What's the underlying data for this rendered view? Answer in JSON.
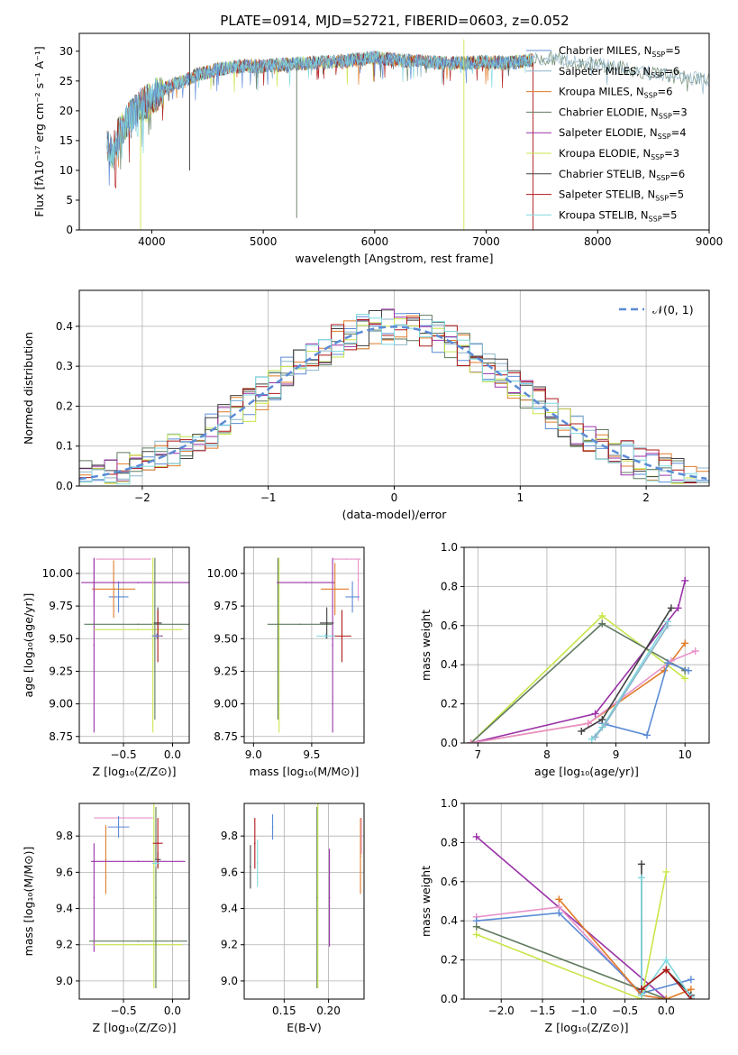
{
  "figure_title": "PLATE=0914, MJD=52721, FIBERID=0603, z=0.052",
  "colors": {
    "chabrier_miles": "#5b8bd6",
    "salpeter_miles": "#8cb4c8",
    "kroupa_miles": "#e07b28",
    "chabrier_elodie": "#5f7a5f",
    "salpeter_elodie": "#9a32a8",
    "kroupa_elodie": "#c8e64a",
    "chabrier_stelib": "#404040",
    "salpeter_stelib": "#b01818",
    "kroupa_stelib": "#7fd8e0",
    "pink": "#e891c9",
    "blue2": "#6a8fd8"
  },
  "chart_data": [
    {
      "id": "spectrum",
      "type": "line",
      "xlabel": "wavelength [Angstrom, rest frame]",
      "ylabel": "Flux [fλ10⁻¹⁷ erg cm⁻² s⁻¹ A⁻¹]",
      "xlim": [
        3350,
        9000
      ],
      "ylim": [
        0,
        33
      ],
      "xticks": [
        4000,
        5000,
        6000,
        7000,
        8000,
        9000
      ],
      "yticks": [
        0,
        5,
        10,
        15,
        20,
        25,
        30
      ],
      "grid": false,
      "legend_position": "right",
      "continuum": {
        "x": [
          3600,
          3650,
          3700,
          3800,
          3900,
          4000,
          4100,
          4200,
          4300,
          4400,
          4600,
          4800,
          5000,
          5200,
          5400,
          5600,
          5800,
          6000,
          6200,
          6400,
          6600,
          6800,
          7000,
          7200,
          7400,
          7600,
          7800,
          8000,
          8200,
          8400,
          8600,
          8800,
          9000
        ],
        "y": [
          14,
          13,
          16,
          19,
          21,
          22,
          23.5,
          24.5,
          25,
          26,
          27,
          27.5,
          27.5,
          27.8,
          28,
          28.2,
          28.5,
          29,
          28.5,
          28.3,
          28,
          28,
          28.2,
          28,
          28.5,
          28.8,
          28.2,
          27.8,
          27.3,
          26.5,
          26,
          25.5,
          25.3
        ]
      },
      "spike_lines": [
        {
          "x": 3900,
          "color_key": "kroupa_elodie",
          "from": 0,
          "to": 20
        },
        {
          "x": 4340,
          "color_key": "chabrier_stelib",
          "from": 10,
          "to": 33
        },
        {
          "x": 5300,
          "color_key": "chabrier_elodie",
          "from": 2,
          "to": 28
        },
        {
          "x": 6800,
          "color_key": "kroupa_elodie",
          "from": 0,
          "to": 32
        },
        {
          "x": 7420,
          "color_key": "salpeter_stelib",
          "from": 0,
          "to": 28
        }
      ],
      "series": [
        {
          "name": "Chabrier MILES",
          "n_label": "5",
          "color_key": "chabrier_miles"
        },
        {
          "name": "Salpeter MILES",
          "n_label": "6",
          "color_key": "salpeter_miles"
        },
        {
          "name": "Kroupa MILES",
          "n_label": "6",
          "color_key": "kroupa_miles"
        },
        {
          "name": "Chabrier ELODIE",
          "n_label": "3",
          "color_key": "chabrier_elodie"
        },
        {
          "name": "Salpeter ELODIE",
          "n_label": "4",
          "color_key": "salpeter_elodie"
        },
        {
          "name": "Kroupa ELODIE",
          "n_label": "3",
          "color_key": "kroupa_elodie"
        },
        {
          "name": "Chabrier STELIB",
          "n_label": "6",
          "color_key": "chabrier_stelib"
        },
        {
          "name": "Salpeter STELIB",
          "n_label": "5",
          "color_key": "salpeter_stelib"
        },
        {
          "name": "Kroupa STELIB",
          "n_label": "5",
          "color_key": "kroupa_stelib"
        }
      ]
    },
    {
      "id": "residual_hist",
      "type": "bar",
      "xlabel": "(data-model)/error",
      "ylabel": "Normed distribution",
      "xlim": [
        -2.5,
        2.5
      ],
      "ylim": [
        0,
        0.49
      ],
      "xticks": [
        -2,
        -1,
        0,
        1,
        2
      ],
      "xtick_labels": [
        "−2",
        "−1",
        "0",
        "1",
        "2"
      ],
      "yticks": [
        0,
        0.1,
        0.2,
        0.3,
        0.4
      ],
      "ytick_labels": [
        "0.0",
        "0.1",
        "0.2",
        "0.3",
        "0.4"
      ],
      "grid": true,
      "legend_position": "top-right",
      "reference_curve": {
        "label": "𝒩(0, 1)",
        "mean": 0,
        "sigma": 1
      },
      "bin_width": 0.1,
      "hist_series": [
        "chabrier_miles",
        "salpeter_miles",
        "kroupa_miles",
        "chabrier_elodie",
        "salpeter_elodie",
        "kroupa_elodie",
        "chabrier_stelib",
        "salpeter_stelib",
        "kroupa_stelib"
      ]
    },
    {
      "id": "age_vs_Z",
      "type": "scatter",
      "xlabel": "Z [log₁₀(Z/Z⊙)]",
      "ylabel": "age  [log₁₀(age/yr)]",
      "xlim": [
        -0.95,
        0.17
      ],
      "ylim": [
        8.7,
        10.2
      ],
      "xticks": [
        -0.5,
        0.0
      ],
      "xtick_labels": [
        "−0.5",
        "0.0"
      ],
      "yticks": [
        8.75,
        9.0,
        9.25,
        9.5,
        9.75,
        10.0
      ],
      "ytick_labels": [
        "8.75",
        "9.00",
        "9.25",
        "9.50",
        "9.75",
        "10.00"
      ],
      "grid": true,
      "points": [
        {
          "x": -0.55,
          "y": 9.82,
          "xerr": 0.1,
          "yerr": 0.12,
          "color_key": "chabrier_miles"
        },
        {
          "x": -0.8,
          "y": 9.93,
          "xerr": 0.0,
          "yerr": 0.18,
          "color_key": "pink"
        },
        {
          "x": -0.5,
          "y": 10.11,
          "xerr": 0.28,
          "yerr": 0.0,
          "color_key": "pink"
        },
        {
          "x": -0.6,
          "y": 9.88,
          "xerr": 0.22,
          "yerr": 0.22,
          "color_key": "kroupa_miles"
        },
        {
          "x": -0.35,
          "y": 9.93,
          "xerr": 0.58,
          "yerr": 0.0,
          "color_key": "salpeter_elodie"
        },
        {
          "x": -0.8,
          "y": 9.45,
          "xerr": 0.0,
          "yerr": 0.67,
          "color_key": "salpeter_elodie"
        },
        {
          "x": -0.35,
          "y": 9.61,
          "xerr": 0.55,
          "yerr": 0.0,
          "color_key": "chabrier_elodie"
        },
        {
          "x": -0.35,
          "y": 9.57,
          "xerr": 0.45,
          "yerr": 0.0,
          "color_key": "kroupa_elodie"
        },
        {
          "x": -0.2,
          "y": 9.45,
          "xerr": 0.0,
          "yerr": 0.67,
          "color_key": "kroupa_elodie"
        },
        {
          "x": -0.18,
          "y": 9.5,
          "xerr": 0.0,
          "yerr": 0.62,
          "color_key": "chabrier_elodie"
        },
        {
          "x": -0.15,
          "y": 9.62,
          "xerr": 0.04,
          "yerr": 0.12,
          "color_key": "chabrier_stelib"
        },
        {
          "x": -0.15,
          "y": 9.52,
          "xerr": 0.05,
          "yerr": 0.2,
          "color_key": "salpeter_stelib"
        },
        {
          "x": -0.16,
          "y": 9.52,
          "xerr": 0.05,
          "yerr": 0.02,
          "color_key": "blue2"
        }
      ]
    },
    {
      "id": "age_vs_mass",
      "type": "scatter",
      "xlabel": "mass [log₁₀(M/M⊙)]",
      "xlim": [
        8.92,
        9.95
      ],
      "ylim": [
        8.7,
        10.2
      ],
      "xticks": [
        9.0,
        9.5
      ],
      "xtick_labels": [
        "9.0",
        "9.5"
      ],
      "yticks": [
        8.75,
        9.0,
        9.25,
        9.5,
        9.75,
        10.0
      ],
      "ytick_labels": [
        "8.75",
        "9.00",
        "9.25",
        "9.50",
        "9.75",
        "10.00"
      ],
      "grid": true,
      "points": [
        {
          "x": 9.22,
          "y": 9.45,
          "xerr": 0.0,
          "yerr": 0.67,
          "color_key": "kroupa_elodie"
        },
        {
          "x": 9.21,
          "y": 9.5,
          "xerr": 0.0,
          "yerr": 0.62,
          "color_key": "chabrier_elodie"
        },
        {
          "x": 9.45,
          "y": 9.93,
          "xerr": 0.25,
          "yerr": 0.0,
          "color_key": "salpeter_elodie"
        },
        {
          "x": 9.68,
          "y": 9.45,
          "xerr": 0.0,
          "yerr": 0.67,
          "color_key": "salpeter_elodie"
        },
        {
          "x": 9.4,
          "y": 9.61,
          "xerr": 0.28,
          "yerr": 0.0,
          "color_key": "chabrier_elodie"
        },
        {
          "x": 9.7,
          "y": 9.88,
          "xerr": 0.12,
          "yerr": 0.2,
          "color_key": "kroupa_miles"
        },
        {
          "x": 9.8,
          "y": 10.11,
          "xerr": 0.12,
          "yerr": 0.0,
          "color_key": "pink"
        },
        {
          "x": 9.9,
          "y": 9.95,
          "xerr": 0.0,
          "yerr": 0.16,
          "color_key": "pink"
        },
        {
          "x": 9.85,
          "y": 9.82,
          "xerr": 0.06,
          "yerr": 0.12,
          "color_key": "chabrier_miles"
        },
        {
          "x": 9.63,
          "y": 9.62,
          "xerr": 0.06,
          "yerr": 0.12,
          "color_key": "chabrier_stelib"
        },
        {
          "x": 9.76,
          "y": 9.52,
          "xerr": 0.08,
          "yerr": 0.2,
          "color_key": "salpeter_stelib"
        },
        {
          "x": 9.62,
          "y": 9.52,
          "xerr": 0.08,
          "yerr": 0.02,
          "color_key": "kroupa_stelib"
        }
      ]
    },
    {
      "id": "massweight_vs_age",
      "type": "line",
      "xlabel": "age  [log₁₀(age/yr)]",
      "ylabel": "mass weight",
      "xlim": [
        6.8,
        10.35
      ],
      "ylim": [
        0,
        1.0
      ],
      "xticks": [
        7,
        8,
        9,
        10
      ],
      "yticks": [
        0,
        0.2,
        0.4,
        0.6,
        0.8,
        1.0
      ],
      "ytick_labels": [
        "0.0",
        "0.2",
        "0.4",
        "0.6",
        "0.8",
        "1.0"
      ],
      "grid": true,
      "series": [
        {
          "color_key": "kroupa_elodie",
          "x": [
            6.9,
            8.8,
            10.0
          ],
          "y": [
            0.0,
            0.65,
            0.33
          ]
        },
        {
          "color_key": "chabrier_elodie",
          "x": [
            6.9,
            8.8,
            10.0
          ],
          "y": [
            0.0,
            0.61,
            0.37
          ]
        },
        {
          "color_key": "salpeter_elodie",
          "x": [
            6.9,
            8.7,
            9.9,
            10.0
          ],
          "y": [
            0.0,
            0.15,
            0.69,
            0.83
          ]
        },
        {
          "color_key": "kroupa_miles",
          "x": [
            6.9,
            8.6,
            9.7,
            10.0
          ],
          "y": [
            0.0,
            0.1,
            0.37,
            0.51
          ]
        },
        {
          "color_key": "pink",
          "x": [
            6.9,
            8.6,
            9.8,
            10.15
          ],
          "y": [
            0.0,
            0.1,
            0.42,
            0.47
          ]
        },
        {
          "color_key": "chabrier_miles",
          "x": [
            8.8,
            9.45,
            9.75,
            10.05
          ],
          "y": [
            0.1,
            0.04,
            0.41,
            0.37
          ]
        },
        {
          "color_key": "chabrier_stelib",
          "x": [
            8.5,
            8.8,
            9.8
          ],
          "y": [
            0.06,
            0.12,
            0.69
          ]
        },
        {
          "color_key": "kroupa_stelib",
          "x": [
            8.65,
            8.8,
            9.75
          ],
          "y": [
            0.02,
            0.08,
            0.62
          ]
        },
        {
          "color_key": "salpeter_miles",
          "x": [
            8.7,
            8.85,
            9.75
          ],
          "y": [
            0.03,
            0.1,
            0.6
          ]
        }
      ]
    },
    {
      "id": "mass_vs_Z",
      "type": "scatter",
      "xlabel": "Z [log₁₀(Z/Z⊙)]",
      "ylabel": "mass  [log₁₀(M/M⊙)]",
      "xlim": [
        -0.95,
        0.17
      ],
      "ylim": [
        8.9,
        9.98
      ],
      "xticks": [
        -0.5,
        0.0
      ],
      "xtick_labels": [
        "−0.5",
        "0.0"
      ],
      "yticks": [
        9.0,
        9.2,
        9.4,
        9.6,
        9.8
      ],
      "ytick_labels": [
        "9.0",
        "9.2",
        "9.4",
        "9.6",
        "9.8"
      ],
      "grid": true,
      "points": [
        {
          "x": -0.5,
          "y": 9.9,
          "xerr": 0.3,
          "yerr": 0.0,
          "color_key": "pink"
        },
        {
          "x": -0.55,
          "y": 9.85,
          "xerr": 0.11,
          "yerr": 0.06,
          "color_key": "chabrier_miles"
        },
        {
          "x": -0.68,
          "y": 9.67,
          "xerr": 0.0,
          "yerr": 0.19,
          "color_key": "kroupa_miles"
        },
        {
          "x": -0.35,
          "y": 9.66,
          "xerr": 0.48,
          "yerr": 0.0,
          "color_key": "salpeter_elodie"
        },
        {
          "x": -0.8,
          "y": 9.46,
          "xerr": 0.0,
          "yerr": 0.3,
          "color_key": "salpeter_elodie"
        },
        {
          "x": -0.35,
          "y": 9.22,
          "xerr": 0.5,
          "yerr": 0.0,
          "color_key": "chabrier_elodie"
        },
        {
          "x": -0.35,
          "y": 9.2,
          "xerr": 0.45,
          "yerr": 0.0,
          "color_key": "kroupa_elodie"
        },
        {
          "x": -0.19,
          "y": 9.47,
          "xerr": 0.0,
          "yerr": 0.51,
          "color_key": "kroupa_elodie"
        },
        {
          "x": -0.17,
          "y": 9.46,
          "xerr": 0.0,
          "yerr": 0.5,
          "color_key": "chabrier_elodie"
        },
        {
          "x": -0.15,
          "y": 9.67,
          "xerr": 0.03,
          "yerr": 0.04,
          "color_key": "chabrier_stelib"
        },
        {
          "x": -0.15,
          "y": 9.76,
          "xerr": 0.05,
          "yerr": 0.14,
          "color_key": "salpeter_stelib"
        },
        {
          "x": -0.17,
          "y": 9.65,
          "xerr": 0.04,
          "yerr": 0.02,
          "color_key": "kroupa_stelib"
        }
      ]
    },
    {
      "id": "mass_vs_EBV",
      "type": "scatter",
      "xlabel": "E(B-V)",
      "xlim": [
        0.105,
        0.24
      ],
      "ylim": [
        8.9,
        9.98
      ],
      "xticks": [
        0.15,
        0.2
      ],
      "xtick_labels": [
        "0.15",
        "0.20"
      ],
      "yticks": [
        9.0,
        9.2,
        9.4,
        9.6,
        9.8
      ],
      "ytick_labels": [
        "9.0",
        "9.2",
        "9.4",
        "9.6",
        "9.8"
      ],
      "grid": true,
      "points": [
        {
          "x": 0.112,
          "y": 9.63,
          "xerr": 0.0,
          "yerr": 0.12,
          "color_key": "chabrier_stelib"
        },
        {
          "x": 0.117,
          "y": 9.76,
          "xerr": 0.0,
          "yerr": 0.14,
          "color_key": "salpeter_stelib"
        },
        {
          "x": 0.12,
          "y": 9.65,
          "xerr": 0.0,
          "yerr": 0.13,
          "color_key": "kroupa_stelib"
        },
        {
          "x": 0.137,
          "y": 9.85,
          "xerr": 0.0,
          "yerr": 0.07,
          "color_key": "chabrier_miles"
        },
        {
          "x": 0.187,
          "y": 9.46,
          "xerr": 0.0,
          "yerr": 0.5,
          "color_key": "chabrier_elodie"
        },
        {
          "x": 0.188,
          "y": 9.47,
          "xerr": 0.0,
          "yerr": 0.51,
          "color_key": "kroupa_elodie"
        },
        {
          "x": 0.201,
          "y": 9.46,
          "xerr": 0.0,
          "yerr": 0.27,
          "color_key": "salpeter_elodie"
        },
        {
          "x": 0.236,
          "y": 9.69,
          "xerr": 0.0,
          "yerr": 0.21,
          "color_key": "kroupa_miles"
        },
        {
          "x": 0.237,
          "y": 9.8,
          "xerr": 0.0,
          "yerr": 0.1,
          "color_key": "pink"
        }
      ]
    },
    {
      "id": "massweight_vs_Z",
      "type": "line",
      "xlabel": "Z [log₁₀(Z/Z⊙)]",
      "ylabel": "mass weight",
      "xlim": [
        -2.45,
        0.52
      ],
      "ylim": [
        0,
        1.0
      ],
      "xticks": [
        -2.0,
        -1.5,
        -1.0,
        -0.5,
        0.0
      ],
      "xtick_labels": [
        "−2.0",
        "−1.5",
        "−1.0",
        "−0.5",
        "0.0"
      ],
      "yticks": [
        0,
        0.2,
        0.4,
        0.6,
        0.8,
        1.0
      ],
      "ytick_labels": [
        "0.0",
        "0.2",
        "0.4",
        "0.6",
        "0.8",
        "1.0"
      ],
      "grid": true,
      "series": [
        {
          "color_key": "salpeter_elodie",
          "x": [
            -2.3,
            0.0
          ],
          "y": [
            0.83,
            0.0
          ]
        },
        {
          "color_key": "pink",
          "x": [
            -2.3,
            -1.3,
            -0.3
          ],
          "y": [
            0.42,
            0.47,
            0.02
          ]
        },
        {
          "color_key": "chabrier_miles",
          "x": [
            -2.3,
            -1.3,
            -0.3,
            0.3
          ],
          "y": [
            0.4,
            0.44,
            0.03,
            0.1
          ]
        },
        {
          "color_key": "chabrier_elodie",
          "x": [
            -2.3,
            0.0
          ],
          "y": [
            0.37,
            0.0
          ]
        },
        {
          "color_key": "kroupa_elodie",
          "x": [
            -2.3,
            -0.3,
            0.0
          ],
          "y": [
            0.33,
            0.0,
            0.65
          ]
        },
        {
          "color_key": "kroupa_miles",
          "x": [
            -1.3,
            -0.3,
            0.0,
            0.3
          ],
          "y": [
            0.51,
            0.02,
            0.0,
            0.05
          ]
        },
        {
          "color_key": "chabrier_stelib",
          "x": [
            -0.3,
            -0.3,
            0.0,
            0.3
          ],
          "y": [
            0.69,
            0.05,
            0.15,
            0.02
          ]
        },
        {
          "color_key": "kroupa_stelib",
          "x": [
            -0.3,
            -0.3,
            0.0,
            0.3
          ],
          "y": [
            0.62,
            0.02,
            0.2,
            0.01
          ]
        },
        {
          "color_key": "salpeter_stelib",
          "x": [
            -0.3,
            0.0,
            0.3
          ],
          "y": [
            0.05,
            0.15,
            0.0
          ]
        }
      ]
    }
  ]
}
